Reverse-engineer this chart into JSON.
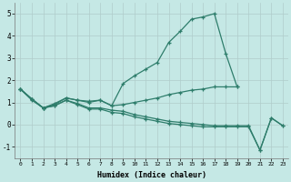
{
  "xlabel": "Humidex (Indice chaleur)",
  "x_values": [
    0,
    1,
    2,
    3,
    4,
    5,
    6,
    7,
    8,
    9,
    10,
    11,
    12,
    13,
    14,
    15,
    16,
    17,
    18,
    19,
    20,
    21,
    22,
    23
  ],
  "line1": [
    1.6,
    1.1,
    0.75,
    0.95,
    1.2,
    1.1,
    1.05,
    1.1,
    0.85,
    1.85,
    2.2,
    2.5,
    2.8,
    3.7,
    4.2,
    4.75,
    4.85,
    5.0,
    3.2,
    1.7,
    null,
    null,
    null,
    null
  ],
  "line2": [
    1.6,
    1.15,
    0.75,
    0.9,
    1.2,
    1.1,
    1.0,
    1.1,
    0.85,
    0.9,
    1.0,
    1.1,
    1.2,
    1.35,
    1.45,
    1.55,
    1.6,
    1.7,
    1.7,
    1.7,
    null,
    null,
    null,
    null
  ],
  "line3": [
    1.6,
    1.15,
    0.75,
    0.85,
    1.1,
    0.95,
    0.75,
    0.75,
    0.65,
    0.6,
    0.45,
    0.35,
    0.25,
    0.15,
    0.1,
    0.05,
    0.0,
    -0.05,
    -0.05,
    -0.05,
    -0.05,
    -1.15,
    0.3,
    -0.05
  ],
  "line4": [
    1.6,
    1.15,
    0.75,
    0.85,
    1.1,
    0.9,
    0.7,
    0.7,
    0.55,
    0.5,
    0.35,
    0.25,
    0.15,
    0.05,
    0.0,
    -0.05,
    -0.1,
    -0.1,
    -0.1,
    -0.1,
    -0.1,
    -1.15,
    0.3,
    -0.05
  ],
  "ylim": [
    -1.5,
    5.5
  ],
  "yticks": [
    -1,
    0,
    1,
    2,
    3,
    4,
    5
  ],
  "color": "#2E7D6B",
  "bg_color": "#C5E8E5",
  "grid_color": "#B0CCCA"
}
